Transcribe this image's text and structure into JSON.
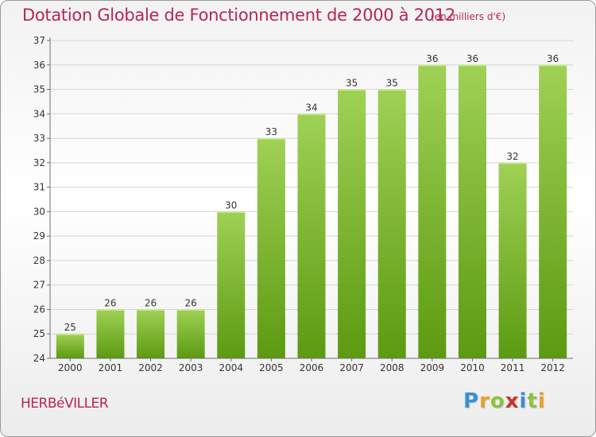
{
  "header": {
    "title": "Dotation Globale de Fonctionnement de 2000 à 2012",
    "subtitle": "(en milliers d'€)"
  },
  "footer": {
    "commune": "HERBéVILLER",
    "logo_letters": [
      "P",
      "r",
      "o",
      "x",
      "i",
      "t",
      "i"
    ],
    "logo_colors": [
      "#3a8fd6",
      "#e8a126",
      "#8ac43f",
      "#c9342e",
      "#3a8fd6",
      "#8ac43f",
      "#e8a126"
    ]
  },
  "colors": {
    "bar_light": "#9fd155",
    "bar_dark": "#5c9a11",
    "grid": "#d4d4d4",
    "axis": "#6e6e6e",
    "text": "#333333",
    "accent": "#b5255b"
  },
  "chart_data": {
    "type": "bar",
    "categories": [
      "2000",
      "2001",
      "2002",
      "2003",
      "2004",
      "2005",
      "2006",
      "2007",
      "2008",
      "2009",
      "2010",
      "2011",
      "2012"
    ],
    "values": [
      25,
      26,
      26,
      26,
      30,
      33,
      34,
      35,
      35,
      36,
      36,
      32,
      36
    ],
    "ylim": [
      24,
      37
    ],
    "yticks": [
      24,
      25,
      26,
      27,
      28,
      29,
      30,
      31,
      32,
      33,
      34,
      35,
      36,
      37
    ],
    "title": "Dotation Globale de Fonctionnement de 2000 à 2012",
    "ylabel": "",
    "xlabel": "",
    "grid": true
  }
}
